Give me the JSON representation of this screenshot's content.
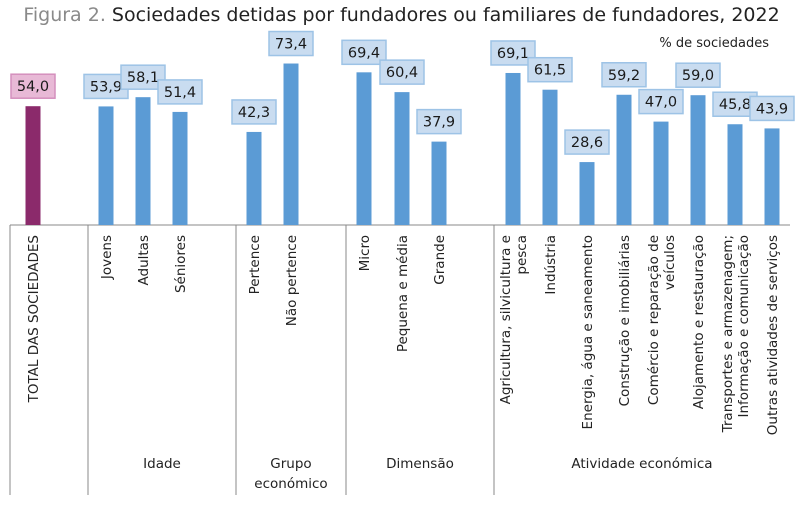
{
  "title_prefix": "Figura 2.",
  "title": "Sociedades detidas por fundadores ou familiares de fundadores, 2022",
  "unit_label": "% de sociedades",
  "chart_data": {
    "type": "bar",
    "ylim": [
      0,
      80
    ],
    "grid": false,
    "colors": {
      "total": "#8b2a6b",
      "bar": "#5b9bd5",
      "label_fill": "#c9dcf0",
      "label_border": "#9dc3e6",
      "total_label_fill": "#e8b9d6",
      "total_label_border": "#d48fbd",
      "axis": "#888888"
    },
    "groups": [
      {
        "name": "",
        "categories": [
          {
            "label": [
              "TOTAL DAS SOCIEDADES"
            ],
            "value": 54.0,
            "display": "54,0",
            "highlight": true
          }
        ]
      },
      {
        "name": "Idade",
        "categories": [
          {
            "label": [
              "Jovens"
            ],
            "value": 53.9,
            "display": "53,9"
          },
          {
            "label": [
              "Adultas"
            ],
            "value": 58.1,
            "display": "58,1"
          },
          {
            "label": [
              "Séniores"
            ],
            "value": 51.4,
            "display": "51,4"
          }
        ]
      },
      {
        "name": "Grupo económico",
        "categories": [
          {
            "label": [
              "Pertence"
            ],
            "value": 42.3,
            "display": "42,3"
          },
          {
            "label": [
              "Não pertence"
            ],
            "value": 73.4,
            "display": "73,4"
          }
        ]
      },
      {
        "name": "Dimensão",
        "categories": [
          {
            "label": [
              "Micro"
            ],
            "value": 69.4,
            "display": "69,4"
          },
          {
            "label": [
              "Pequena e média"
            ],
            "value": 60.4,
            "display": "60,4"
          },
          {
            "label": [
              "Grande"
            ],
            "value": 37.9,
            "display": "37,9"
          }
        ]
      },
      {
        "name": "Atividade económica",
        "categories": [
          {
            "label": [
              "Agricultura, silvicultura e",
              "pesca"
            ],
            "value": 69.1,
            "display": "69,1"
          },
          {
            "label": [
              "Indústria"
            ],
            "value": 61.5,
            "display": "61,5"
          },
          {
            "label": [
              "Energia, água e saneamento"
            ],
            "value": 28.6,
            "display": "28,6"
          },
          {
            "label": [
              "Construção e imobiliárias"
            ],
            "value": 59.2,
            "display": "59,2"
          },
          {
            "label": [
              "Comércio e reparação de",
              "veículos"
            ],
            "value": 47.0,
            "display": "47,0"
          },
          {
            "label": [
              "Alojamento e restauração"
            ],
            "value": 59.0,
            "display": "59,0"
          },
          {
            "label": [
              "Transportes e armazenagem;",
              "Informação e comunicação"
            ],
            "value": 45.8,
            "display": "45,8"
          },
          {
            "label": [
              "Outras atividades de serviços"
            ],
            "value": 43.9,
            "display": "43,9"
          }
        ]
      }
    ]
  }
}
